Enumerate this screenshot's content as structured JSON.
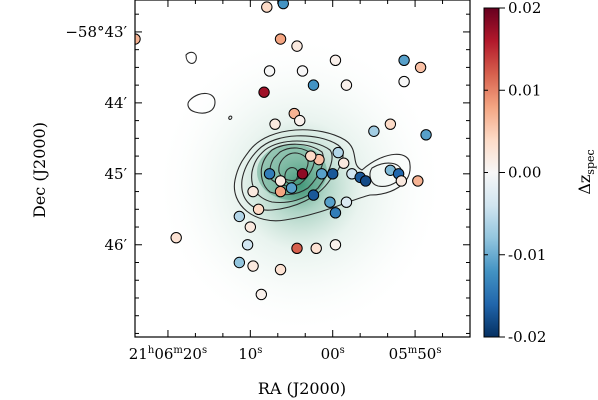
{
  "chart_data": {
    "type": "scatter",
    "title": "",
    "xlabel": "RA (J2000)",
    "ylabel": "Dec (J2000)",
    "x_unit": "arcmin offset from 21h06m00s (RA decreasing to the right)",
    "xlim": [
      3.6,
      -2.5
    ],
    "ylim": [
      -4.3,
      0.45
    ],
    "x_ticks": [
      {
        "value": 3.0,
        "label_main": "21",
        "label_h": "h",
        "label_mid": "06",
        "label_m": "m",
        "label_sec": "20",
        "label_s": "s"
      },
      {
        "value": 1.5,
        "label_main": "10",
        "label_s": "s"
      },
      {
        "value": 0.0,
        "label_main": "00",
        "label_s": "s"
      },
      {
        "value": -1.5,
        "label_main": "05",
        "label_m": "m",
        "label_sec": "50",
        "label_s": "s"
      }
    ],
    "y_ticks": [
      {
        "value": -0.0,
        "label": "−58°43′"
      },
      {
        "value": -1.0,
        "label": "44′"
      },
      {
        "value": -2.0,
        "label": "45′"
      },
      {
        "value": -3.0,
        "label": "46′"
      }
    ],
    "colorbar": {
      "label": "Δz",
      "label_sub": "spec",
      "min": -0.02,
      "max": 0.02,
      "ticks": [
        {
          "value": 0.02,
          "label": "0.02"
        },
        {
          "value": 0.01,
          "label": "0.01"
        },
        {
          "value": 0.0,
          "label": "0.00"
        },
        {
          "value": -0.01,
          "label": "-0.01"
        },
        {
          "value": -0.02,
          "label": "-0.02"
        }
      ],
      "colormap": [
        "#053061",
        "#2166ac",
        "#4393c3",
        "#92c5de",
        "#d1e5f0",
        "#f7f7f7",
        "#fddbc7",
        "#f4a582",
        "#d6604d",
        "#b2182b",
        "#67001f"
      ]
    },
    "background_accent": "#2e8b6a",
    "galaxies": [
      {
        "x": 1.2,
        "y": 0.35,
        "dz": 0.004
      },
      {
        "x": 0.9,
        "y": 0.4,
        "dz": -0.012
      },
      {
        "x": 0.95,
        "y": -0.1,
        "dz": 0.008
      },
      {
        "x": 0.65,
        "y": -0.2,
        "dz": 0.002
      },
      {
        "x": 3.6,
        "y": -0.1,
        "dz": 0.007
      },
      {
        "x": -0.05,
        "y": -0.4,
        "dz": 0.001
      },
      {
        "x": 0.55,
        "y": -0.55,
        "dz": 0.0
      },
      {
        "x": 1.15,
        "y": -0.55,
        "dz": 0.0
      },
      {
        "x": 0.35,
        "y": -0.75,
        "dz": -0.012
      },
      {
        "x": -0.25,
        "y": -0.75,
        "dz": 0.001
      },
      {
        "x": 1.25,
        "y": -0.85,
        "dz": 0.017
      },
      {
        "x": -1.3,
        "y": -0.4,
        "dz": -0.011
      },
      {
        "x": -1.6,
        "y": -0.5,
        "dz": 0.006
      },
      {
        "x": -1.3,
        "y": -0.7,
        "dz": 0.0
      },
      {
        "x": -1.05,
        "y": -1.3,
        "dz": 0.004
      },
      {
        "x": 1.05,
        "y": -1.3,
        "dz": 0.002
      },
      {
        "x": 0.7,
        "y": -1.15,
        "dz": 0.007
      },
      {
        "x": 0.6,
        "y": -1.25,
        "dz": 0.001
      },
      {
        "x": -0.75,
        "y": -1.4,
        "dz": -0.007
      },
      {
        "x": -1.7,
        "y": -1.45,
        "dz": -0.011
      },
      {
        "x": 0.25,
        "y": -1.8,
        "dz": 0.006
      },
      {
        "x": -0.1,
        "y": -1.7,
        "dz": -0.006
      },
      {
        "x": -0.2,
        "y": -1.85,
        "dz": 0.002
      },
      {
        "x": 0.4,
        "y": -1.75,
        "dz": 0.004
      },
      {
        "x": -0.35,
        "y": -2.0,
        "dz": -0.004
      },
      {
        "x": -1.05,
        "y": -1.95,
        "dz": -0.009
      },
      {
        "x": -1.2,
        "y": -2.0,
        "dz": -0.016
      },
      {
        "x": -1.25,
        "y": -2.1,
        "dz": 0.002
      },
      {
        "x": -1.55,
        "y": -2.1,
        "dz": 0.007
      },
      {
        "x": 0.0,
        "y": -2.0,
        "dz": -0.017
      },
      {
        "x": -0.5,
        "y": -2.05,
        "dz": -0.017
      },
      {
        "x": -0.6,
        "y": -2.1,
        "dz": -0.018
      },
      {
        "x": 0.2,
        "y": -2.0,
        "dz": -0.011
      },
      {
        "x": 0.95,
        "y": -2.1,
        "dz": 0.002
      },
      {
        "x": 1.15,
        "y": -2.0,
        "dz": -0.014
      },
      {
        "x": 0.55,
        "y": -2.0,
        "dz": 0.018
      },
      {
        "x": 0.95,
        "y": -2.25,
        "dz": 0.008
      },
      {
        "x": 0.75,
        "y": -2.2,
        "dz": -0.011
      },
      {
        "x": 0.35,
        "y": -2.3,
        "dz": -0.017
      },
      {
        "x": 0.05,
        "y": -2.4,
        "dz": -0.011
      },
      {
        "x": -0.05,
        "y": -2.55,
        "dz": -0.014
      },
      {
        "x": -0.25,
        "y": -2.4,
        "dz": -0.003
      },
      {
        "x": 1.45,
        "y": -2.25,
        "dz": 0.002
      },
      {
        "x": 1.35,
        "y": -2.5,
        "dz": 0.004
      },
      {
        "x": 1.5,
        "y": -2.75,
        "dz": 0.002
      },
      {
        "x": 1.55,
        "y": -3.0,
        "dz": -0.004
      },
      {
        "x": 1.7,
        "y": -2.6,
        "dz": -0.006
      },
      {
        "x": 0.65,
        "y": -3.05,
        "dz": 0.012
      },
      {
        "x": 0.3,
        "y": -3.05,
        "dz": 0.003
      },
      {
        "x": 2.85,
        "y": -2.9,
        "dz": 0.003
      },
      {
        "x": 0.95,
        "y": -3.35,
        "dz": 0.003
      },
      {
        "x": -0.05,
        "y": -3.0,
        "dz": 0.001
      },
      {
        "x": 1.45,
        "y": -3.3,
        "dz": 0.002
      },
      {
        "x": 1.7,
        "y": -3.25,
        "dz": -0.008
      },
      {
        "x": 1.3,
        "y": -3.7,
        "dz": 0.001
      }
    ]
  }
}
